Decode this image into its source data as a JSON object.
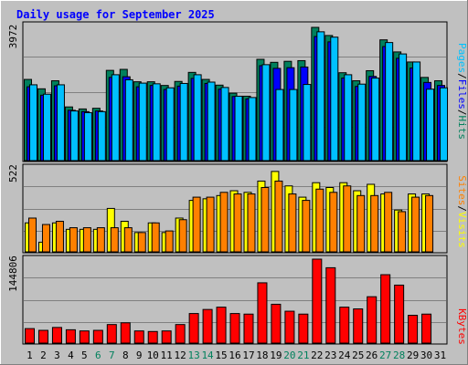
{
  "title": "Daily usage for September 2025",
  "colors": {
    "background": "#C0C0C0",
    "title": "#0000FF",
    "hits": "#00805C",
    "files": "#0000FF",
    "pages": "#00C0FF",
    "visits": "#FFFF00",
    "sites": "#FF8000",
    "kbytes": "#FF0000",
    "weekend_label": "#00805C",
    "weekday_label": "#000000"
  },
  "chart_data": [
    {
      "type": "bar",
      "panel": "hits-files-pages",
      "y_max_label": "3972",
      "ylim": [
        0,
        3972
      ],
      "legend": [
        "Pages",
        "/",
        "Files",
        "/",
        "Hits"
      ],
      "categories": [
        "1",
        "2",
        "3",
        "4",
        "5",
        "6",
        "7",
        "8",
        "9",
        "10",
        "11",
        "12",
        "13",
        "14",
        "15",
        "16",
        "17",
        "18",
        "19",
        "20",
        "21",
        "22",
        "23",
        "24",
        "25",
        "26",
        "27",
        "28",
        "29",
        "30",
        "31"
      ],
      "series": [
        {
          "name": "Hits",
          "values": [
            2420,
            2140,
            2380,
            1600,
            1540,
            1560,
            2690,
            2720,
            2350,
            2350,
            2240,
            2360,
            2630,
            2420,
            2250,
            2010,
            1920,
            3020,
            2930,
            2960,
            2980,
            3972,
            3730,
            2620,
            2380,
            2680,
            3600,
            3240,
            2940,
            2480,
            2380
          ]
        },
        {
          "name": "Files",
          "values": [
            2200,
            1950,
            2230,
            1500,
            1460,
            1480,
            2480,
            2500,
            2200,
            2240,
            2120,
            2220,
            2450,
            2300,
            2130,
            1910,
            1840,
            2830,
            2750,
            2770,
            2790,
            3700,
            3540,
            2460,
            2210,
            2510,
            3400,
            3050,
            2760,
            2330,
            2240
          ]
        },
        {
          "name": "Pages",
          "values": [
            2260,
            1980,
            2260,
            1480,
            1430,
            1460,
            2560,
            2410,
            2310,
            2290,
            2170,
            2300,
            2560,
            2340,
            2180,
            1920,
            1880,
            2860,
            2120,
            2120,
            2270,
            3840,
            3680,
            2560,
            2280,
            2460,
            3520,
            3180,
            2940,
            2130,
            2170
          ]
        }
      ]
    },
    {
      "type": "bar",
      "panel": "visits-sites",
      "y_max_label": "522",
      "ylim": [
        0,
        522
      ],
      "legend": [
        "Sites",
        "/",
        "Visits"
      ],
      "categories": [
        "1",
        "2",
        "3",
        "4",
        "5",
        "6",
        "7",
        "8",
        "9",
        "10",
        "11",
        "12",
        "13",
        "14",
        "15",
        "16",
        "17",
        "18",
        "19",
        "20",
        "21",
        "22",
        "23",
        "24",
        "25",
        "26",
        "27",
        "28",
        "29",
        "30",
        "31"
      ],
      "series": [
        {
          "name": "Visits",
          "values": [
            180,
            60,
            180,
            140,
            140,
            140,
            270,
            190,
            120,
            180,
            120,
            210,
            320,
            330,
            350,
            380,
            370,
            440,
            500,
            410,
            340,
            430,
            400,
            430,
            380,
            420,
            360,
            260,
            360,
            360,
            0
          ]
        },
        {
          "name": "Sites",
          "values": [
            210,
            170,
            190,
            150,
            150,
            150,
            150,
            150,
            120,
            180,
            130,
            200,
            340,
            340,
            370,
            360,
            360,
            400,
            440,
            360,
            320,
            390,
            370,
            410,
            350,
            350,
            370,
            250,
            340,
            350,
            0
          ]
        }
      ]
    },
    {
      "type": "bar",
      "panel": "kbytes",
      "y_max_label": "144806",
      "ylim": [
        0,
        144806
      ],
      "legend": [
        "KBytes"
      ],
      "categories": [
        "1",
        "2",
        "3",
        "4",
        "5",
        "6",
        "7",
        "8",
        "9",
        "10",
        "11",
        "12",
        "13",
        "14",
        "15",
        "16",
        "17",
        "18",
        "19",
        "20",
        "21",
        "22",
        "23",
        "24",
        "25",
        "26",
        "27",
        "28",
        "29",
        "30",
        "31"
      ],
      "series": [
        {
          "name": "KBytes",
          "values": [
            25000,
            22000,
            27000,
            23000,
            21000,
            22000,
            32000,
            35000,
            21000,
            20000,
            21000,
            32000,
            51000,
            58000,
            62000,
            51000,
            50000,
            104000,
            67000,
            55000,
            50000,
            144806,
            130000,
            62000,
            59000,
            80000,
            118000,
            100000,
            48000,
            50000,
            0
          ]
        }
      ]
    }
  ],
  "x_axis": {
    "labels": [
      "1",
      "2",
      "3",
      "4",
      "5",
      "6",
      "7",
      "8",
      "9",
      "10",
      "11",
      "12",
      "13",
      "14",
      "15",
      "16",
      "17",
      "18",
      "19",
      "20",
      "21",
      "22",
      "23",
      "24",
      "25",
      "26",
      "27",
      "28",
      "29",
      "30",
      "31"
    ],
    "weekend_days": [
      "6",
      "7",
      "13",
      "14",
      "20",
      "21",
      "27",
      "28"
    ]
  }
}
